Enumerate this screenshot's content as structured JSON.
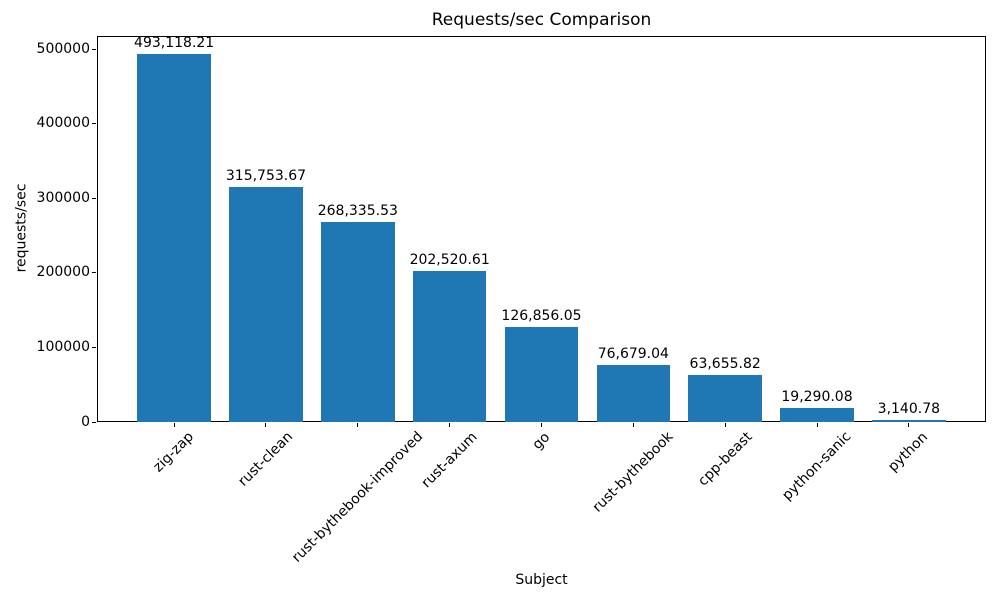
{
  "chart_data": {
    "type": "bar",
    "title": "Requests/sec Comparison",
    "xlabel": "Subject",
    "ylabel": "requests/sec",
    "categories": [
      "zig-zap",
      "rust-clean",
      "rust-bythebook-improved",
      "rust-axum",
      "go",
      "rust-bythebook",
      "cpp-beast",
      "python-sanic",
      "python"
    ],
    "values": [
      493118.21,
      315753.67,
      268335.53,
      202520.61,
      126856.05,
      76679.04,
      63655.82,
      19290.08,
      3140.78
    ],
    "value_labels": [
      "493,118.21",
      "315,753.67",
      "268,335.53",
      "202,520.61",
      "126,856.05",
      "76,679.04",
      "63,655.82",
      "19,290.08",
      "3,140.78"
    ],
    "yticks": [
      0,
      100000,
      200000,
      300000,
      400000,
      500000
    ],
    "ytick_labels": [
      "0",
      "100000",
      "200000",
      "300000",
      "400000",
      "500000"
    ],
    "ylim": [
      0,
      517774
    ],
    "xlim": [
      -0.84,
      8.84
    ],
    "bar_width_units": 0.8,
    "bar_color": "#1f77b4",
    "text_color": "#000000",
    "spine_color": "#000000",
    "x_tick_label_rotation_deg": 45,
    "grid": false,
    "legend": "none"
  }
}
